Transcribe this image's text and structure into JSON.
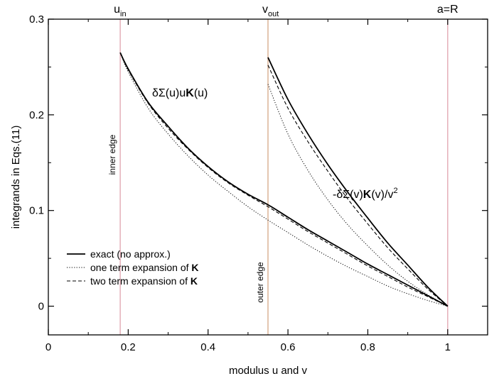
{
  "chart_data": {
    "type": "line",
    "xlabel": "modulus u and v",
    "ylabel": "integrands in Eqs.(11)",
    "xlim": [
      0,
      1.1
    ],
    "ylim": [
      -0.03,
      0.3
    ],
    "x_ticks": [
      {
        "value": 0,
        "label": "0"
      },
      {
        "value": 0.2,
        "label": "0.2"
      },
      {
        "value": 0.4,
        "label": "0.4"
      },
      {
        "value": 0.6,
        "label": "0.6"
      },
      {
        "value": 0.8,
        "label": "0.8"
      },
      {
        "value": 1.0,
        "label": "1"
      }
    ],
    "y_ticks": [
      {
        "value": 0,
        "label": "0"
      },
      {
        "value": 0.1,
        "label": "0.1"
      },
      {
        "value": 0.2,
        "label": "0.2"
      },
      {
        "value": 0.3,
        "label": "0.3"
      }
    ],
    "vertical_lines": [
      {
        "x": 0.18,
        "top_label": "u",
        "top_sub": "in",
        "side_label": "inner edge",
        "color": "#e2a9b3"
      },
      {
        "x": 0.55,
        "top_label": "v",
        "top_sub": "out",
        "side_label": "outer edge",
        "color": "#d9ae8f"
      },
      {
        "x": 1.0,
        "top_label": "a=R",
        "top_sub": "",
        "side_label": "",
        "color": "#e2a9b3"
      }
    ],
    "curve_labels": {
      "inner": {
        "pre": "δΣ(u)u",
        "bold": "K",
        "post": "(u)"
      },
      "outer": {
        "pre": "-δΣ(v)",
        "bold": "K",
        "post": "(v)/v",
        "sup": "2"
      }
    },
    "legend": {
      "placement": "lower-left",
      "entries": [
        {
          "label": "exact (no approx.)",
          "style": "solid"
        },
        {
          "label": "one term expansion of ",
          "bold": "K",
          "style": "dotted"
        },
        {
          "label": "two term expansion of ",
          "bold": "K",
          "style": "dashed"
        }
      ]
    },
    "grid": false,
    "series": [
      {
        "key": "inner_exact",
        "style": "solid",
        "x": [
          0.18,
          0.2,
          0.25,
          0.3,
          0.35,
          0.4,
          0.45,
          0.5,
          0.55,
          0.6,
          0.65,
          0.7,
          0.75,
          0.8,
          0.85,
          0.9,
          0.95,
          1.0
        ],
        "y": [
          0.265,
          0.248,
          0.213,
          0.188,
          0.165,
          0.146,
          0.13,
          0.117,
          0.106,
          0.093,
          0.08,
          0.068,
          0.056,
          0.044,
          0.033,
          0.022,
          0.011,
          0.0
        ]
      },
      {
        "key": "inner_one_term",
        "style": "dotted",
        "x": [
          0.18,
          0.2,
          0.25,
          0.3,
          0.35,
          0.4,
          0.45,
          0.5,
          0.55,
          0.6,
          0.65,
          0.7,
          0.75,
          0.8,
          0.85,
          0.9,
          0.95,
          1.0
        ],
        "y": [
          0.265,
          0.245,
          0.207,
          0.18,
          0.157,
          0.137,
          0.12,
          0.104,
          0.09,
          0.077,
          0.064,
          0.052,
          0.041,
          0.031,
          0.021,
          0.013,
          0.006,
          0.0
        ]
      },
      {
        "key": "inner_two_term",
        "style": "dashed",
        "x": [
          0.18,
          0.2,
          0.25,
          0.3,
          0.35,
          0.4,
          0.45,
          0.5,
          0.55,
          0.6,
          0.65,
          0.7,
          0.75,
          0.8,
          0.85,
          0.9,
          0.95,
          1.0
        ],
        "y": [
          0.265,
          0.247,
          0.212,
          0.186,
          0.164,
          0.145,
          0.129,
          0.116,
          0.104,
          0.091,
          0.078,
          0.066,
          0.054,
          0.042,
          0.031,
          0.02,
          0.01,
          0.0
        ]
      },
      {
        "key": "outer_exact",
        "style": "solid",
        "x": [
          0.55,
          0.6,
          0.65,
          0.7,
          0.75,
          0.8,
          0.85,
          0.9,
          0.95,
          1.0
        ],
        "y": [
          0.26,
          0.216,
          0.18,
          0.148,
          0.119,
          0.092,
          0.066,
          0.043,
          0.02,
          0.0
        ]
      },
      {
        "key": "outer_one_term",
        "style": "dotted",
        "x": [
          0.55,
          0.6,
          0.65,
          0.7,
          0.75,
          0.8,
          0.85,
          0.9,
          0.95,
          1.0
        ],
        "y": [
          0.232,
          0.18,
          0.142,
          0.111,
          0.085,
          0.063,
          0.043,
          0.026,
          0.012,
          0.0
        ]
      },
      {
        "key": "outer_two_term",
        "style": "dashed",
        "x": [
          0.55,
          0.6,
          0.65,
          0.7,
          0.75,
          0.8,
          0.85,
          0.9,
          0.95,
          1.0
        ],
        "y": [
          0.252,
          0.207,
          0.172,
          0.141,
          0.112,
          0.086,
          0.061,
          0.039,
          0.018,
          0.0
        ]
      }
    ]
  }
}
